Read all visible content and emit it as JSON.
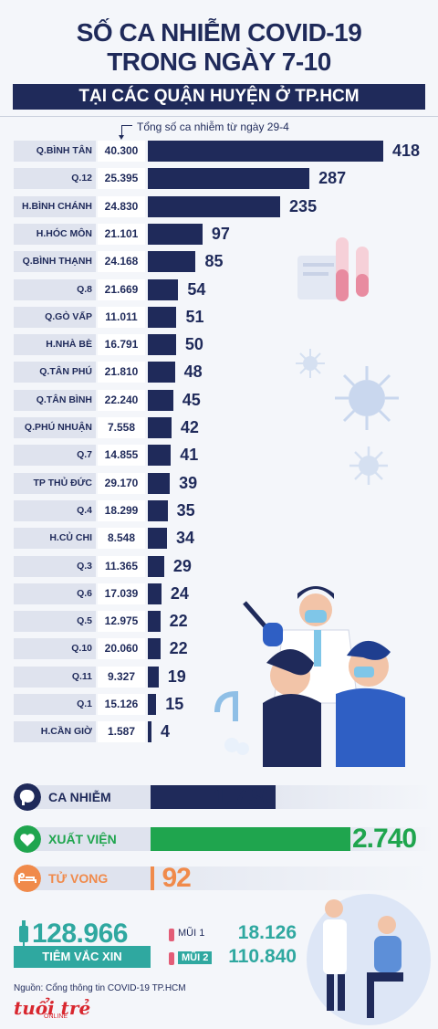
{
  "header": {
    "title_line1": "SỐ CA NHIỄM COVID-19",
    "title_line2": "TRONG NGÀY 7-10",
    "subtitle": "TẠI CÁC QUẬN HUYỆN Ở TP.HCM"
  },
  "note": "Tổng số ca nhiễm từ ngày 29-4",
  "colors": {
    "navy": "#1f2a5a",
    "green": "#1fa54e",
    "orange": "#f08a4b",
    "teal": "#2fa8a0"
  },
  "chart_data": {
    "type": "bar",
    "orientation": "horizontal",
    "categories": [
      "Q.BÌNH TÂN",
      "Q.12",
      "H.BÌNH CHÁNH",
      "H.HÓC MÔN",
      "Q.BÌNH THẠNH",
      "Q.8",
      "Q.GÒ VẤP",
      "H.NHÀ BÈ",
      "Q.TÂN PHÚ",
      "Q.TÂN BÌNH",
      "Q.PHÚ NHUẬN",
      "Q.7",
      "TP THỦ ĐỨC",
      "Q.4",
      "H.CỦ CHI",
      "Q.3",
      "Q.6",
      "Q.5",
      "Q.10",
      "Q.11",
      "Q.1",
      "H.CẦN GIỜ"
    ],
    "totals": [
      "40.300",
      "25.395",
      "24.830",
      "21.101",
      "24.168",
      "21.669",
      "11.011",
      "16.791",
      "21.810",
      "22.240",
      "7.558",
      "14.855",
      "29.170",
      "18.299",
      "8.548",
      "11.365",
      "17.039",
      "12.975",
      "20.060",
      "9.327",
      "15.126",
      "1.587"
    ],
    "values": [
      418,
      287,
      235,
      97,
      85,
      54,
      51,
      50,
      48,
      45,
      42,
      41,
      39,
      35,
      34,
      29,
      24,
      22,
      22,
      19,
      15,
      4
    ]
  },
  "summary": [
    {
      "label": "CA NHIỄM",
      "value": "1.730",
      "number": 1730,
      "color": "#1f2a5a",
      "icon": "person-head-icon"
    },
    {
      "label": "XUẤT VIỆN",
      "value": "2.740",
      "number": 2740,
      "color": "#1fa54e",
      "icon": "heart-icon"
    },
    {
      "label": "TỬ VONG",
      "value": "92",
      "number": 92,
      "color": "#f08a4b",
      "icon": "bed-icon"
    }
  ],
  "vaccine": {
    "total": "128.966",
    "label": "TIÊM VẮC XIN",
    "doses": [
      {
        "label": "MŨI 1",
        "value": "18.126"
      },
      {
        "label": "MŨI 2",
        "value": "110.840"
      }
    ]
  },
  "source": "Nguồn: Cổng thông tin COVID-19 TP.HCM",
  "logo": {
    "text": "tuổi trẻ",
    "sub": "ONLINE"
  }
}
